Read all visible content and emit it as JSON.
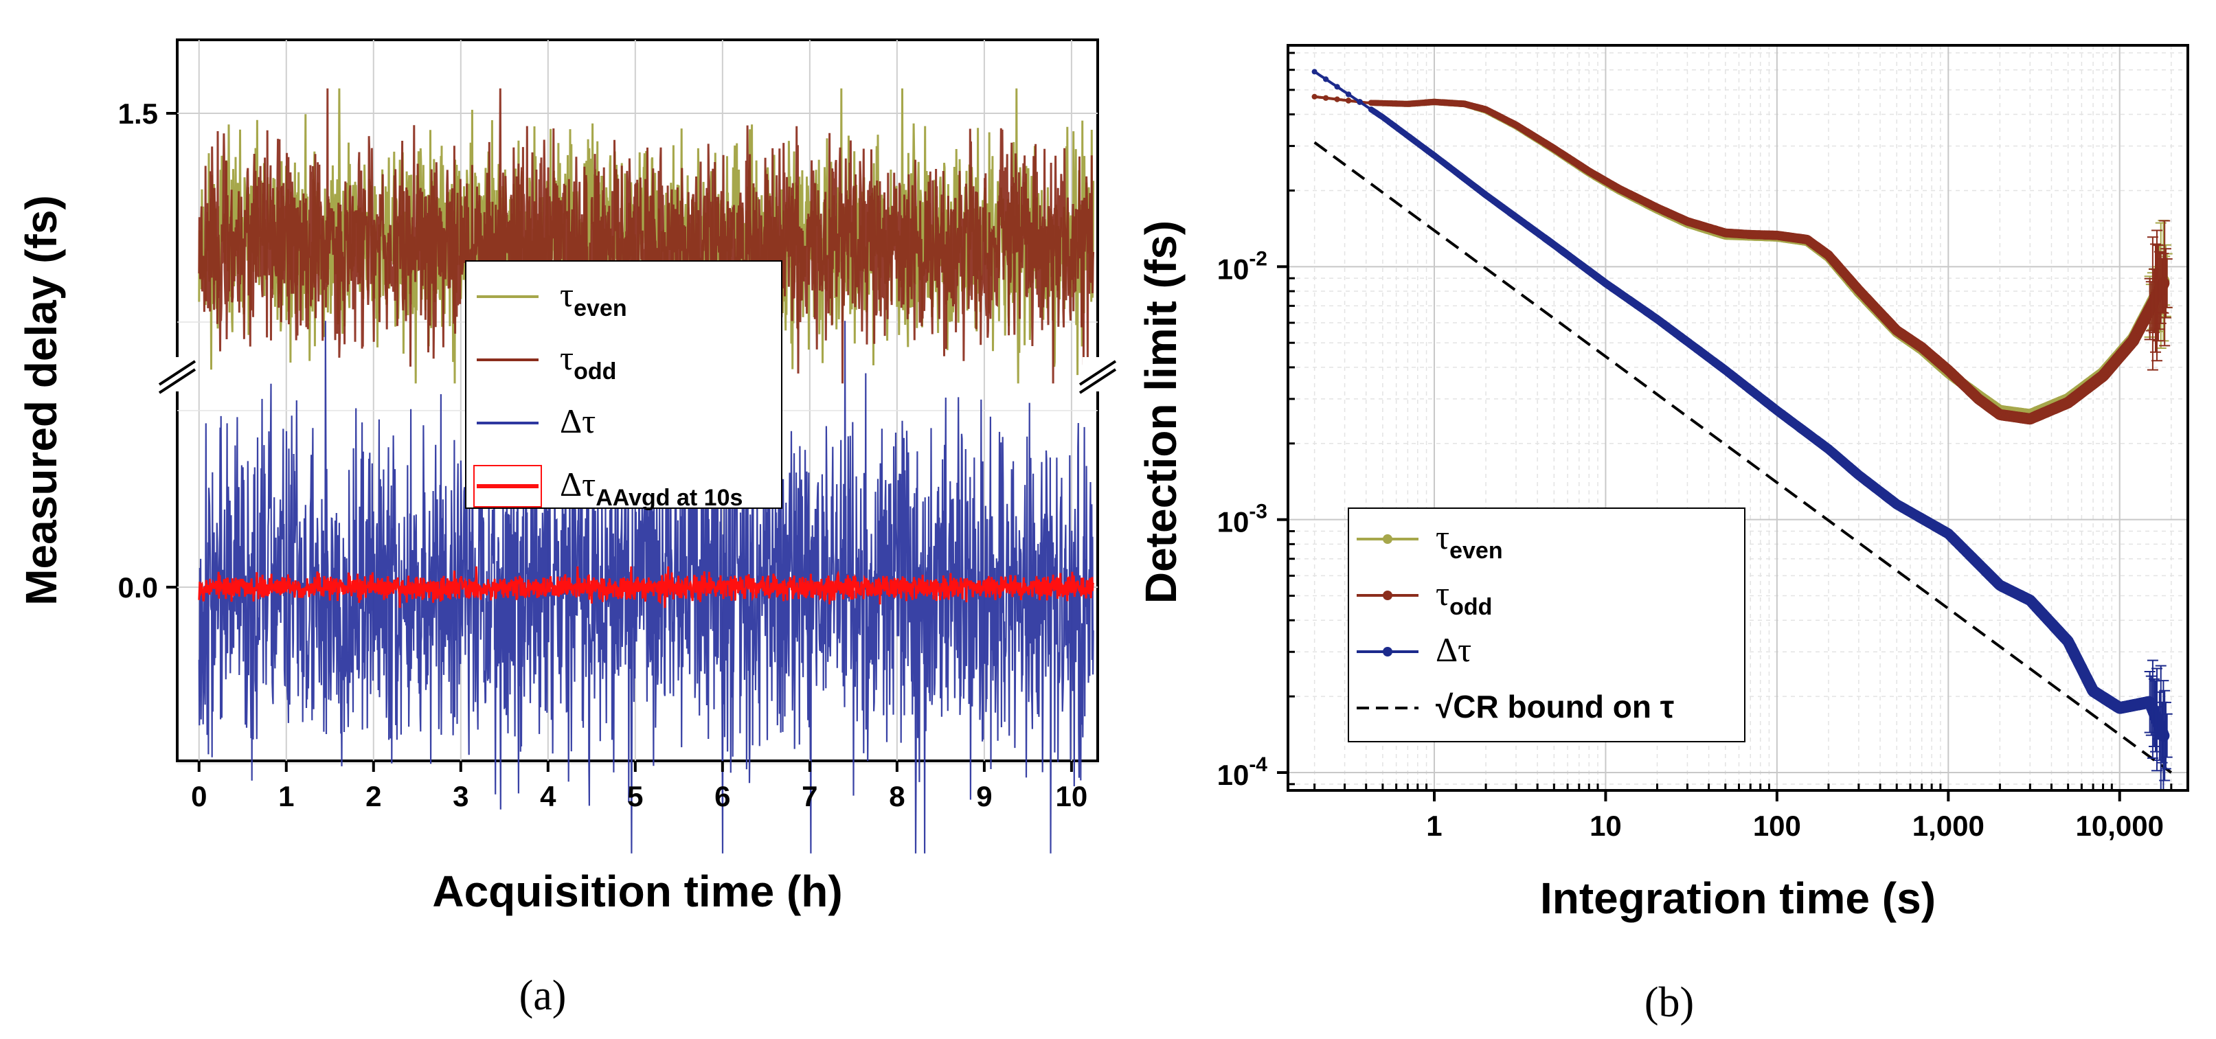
{
  "chart_data": [
    {
      "type": "line",
      "panel": "(a)",
      "xlabel": "Acquisition time (h)",
      "ylabel": "Measured delay (fs)",
      "xlim": [
        -0.25,
        10.3
      ],
      "xticks": [
        "0",
        "1",
        "2",
        "3",
        "4",
        "5",
        "6",
        "7",
        "8",
        "9",
        "10"
      ],
      "yticks": [
        "0.0",
        "1.5"
      ],
      "axis_break": true,
      "grid": true,
      "series": [
        {
          "name": "τ_even",
          "label_main": "τ",
          "label_sub": "even",
          "color": "#a6a74b",
          "band": [
            1.04,
            1.52
          ],
          "center": 1.25
        },
        {
          "name": "τ_odd",
          "label_main": "τ",
          "label_sub": "odd",
          "color": "#8b2d1c",
          "band": [
            1.04,
            1.52
          ],
          "center": 1.25
        },
        {
          "name": "Δτ",
          "label_main": "Δτ",
          "label_sub": "",
          "color": "#2e38a0",
          "band": [
            -0.45,
            0.45
          ],
          "center": 0.0
        },
        {
          "name": "Δτ_AAvgd at 10s",
          "label_main": "Δτ",
          "label_sub": "AAvgd at 10s",
          "color": "#ff1010",
          "band": [
            -0.035,
            0.035
          ],
          "center": 0.0
        }
      ],
      "legend_position": "center"
    },
    {
      "type": "line",
      "panel": "(b)",
      "xscale": "log",
      "yscale": "log",
      "xlabel": "Integration time (s)",
      "ylabel": "Detection limit (fs)",
      "xlim": [
        0.14,
        25000
      ],
      "ylim": [
        8.5e-05,
        0.075
      ],
      "xticks": [
        {
          "value": 1,
          "label": "1"
        },
        {
          "value": 10,
          "label": "10"
        },
        {
          "value": 100,
          "label": "100"
        },
        {
          "value": 1000,
          "label": "1,000"
        },
        {
          "value": 10000,
          "label": "10,000"
        }
      ],
      "yticks": [
        {
          "value": 0.0001,
          "base": "10",
          "exp": "-4"
        },
        {
          "value": 0.001,
          "base": "10",
          "exp": "-3"
        },
        {
          "value": 0.01,
          "base": "10",
          "exp": "-2"
        }
      ],
      "grid": true,
      "series": [
        {
          "name": "τ_even",
          "label_main": "τ",
          "label_sub": "even",
          "color": "#a6a74b",
          "x": [
            0.2,
            0.4,
            0.7,
            1,
            1.5,
            2,
            3,
            5,
            8,
            12,
            20,
            30,
            50,
            70,
            100,
            150,
            200,
            300,
            500,
            700,
            1000,
            1500,
            2000,
            3000,
            5000,
            8000,
            12000,
            18000
          ],
          "y": [
            0.047,
            0.0445,
            0.044,
            0.0448,
            0.044,
            0.0415,
            0.036,
            0.029,
            0.0235,
            0.02,
            0.0168,
            0.0148,
            0.0133,
            0.0132,
            0.0131,
            0.0126,
            0.0109,
            0.0079,
            0.0055,
            0.0047,
            0.0038,
            0.0031,
            0.0027,
            0.0026,
            0.003,
            0.0038,
            0.0052,
            0.0088
          ]
        },
        {
          "name": "τ_odd",
          "label_main": "τ",
          "label_sub": "odd",
          "color": "#8b2d1c",
          "x": [
            0.2,
            0.4,
            0.7,
            1,
            1.5,
            2,
            3,
            5,
            8,
            12,
            20,
            30,
            50,
            70,
            100,
            150,
            200,
            300,
            500,
            700,
            1000,
            1500,
            2000,
            3000,
            5000,
            8000,
            12000,
            18000
          ],
          "y": [
            0.047,
            0.0445,
            0.044,
            0.0448,
            0.044,
            0.0418,
            0.0363,
            0.0293,
            0.0238,
            0.0203,
            0.0171,
            0.0151,
            0.0136,
            0.0134,
            0.0133,
            0.0128,
            0.0111,
            0.0081,
            0.0056,
            0.0048,
            0.0039,
            0.003,
            0.0026,
            0.0025,
            0.0029,
            0.0037,
            0.0051,
            0.0086
          ]
        },
        {
          "name": "Δτ",
          "label_main": "Δτ",
          "label_sub": "",
          "color": "#1c2a8c",
          "x": [
            0.2,
            0.5,
            1,
            2,
            5,
            10,
            20,
            50,
            100,
            200,
            300,
            500,
            1000,
            2000,
            3000,
            5000,
            7000,
            10000,
            15000,
            18000
          ],
          "y": [
            0.059,
            0.039,
            0.0275,
            0.0192,
            0.0122,
            0.0086,
            0.0062,
            0.0039,
            0.0027,
            0.0019,
            0.0015,
            0.00115,
            0.00088,
            0.00055,
            0.00048,
            0.00033,
            0.00021,
            0.00018,
            0.00019,
            0.00014
          ]
        },
        {
          "name": "√CR bound on τ",
          "label_main": "√CR bound on τ",
          "label_sub": "",
          "color": "#000000",
          "dash": true,
          "x": [
            0.2,
            20000
          ],
          "y": [
            0.031,
            0.0001
          ]
        }
      ],
      "legend_position": "bottom-left"
    }
  ]
}
